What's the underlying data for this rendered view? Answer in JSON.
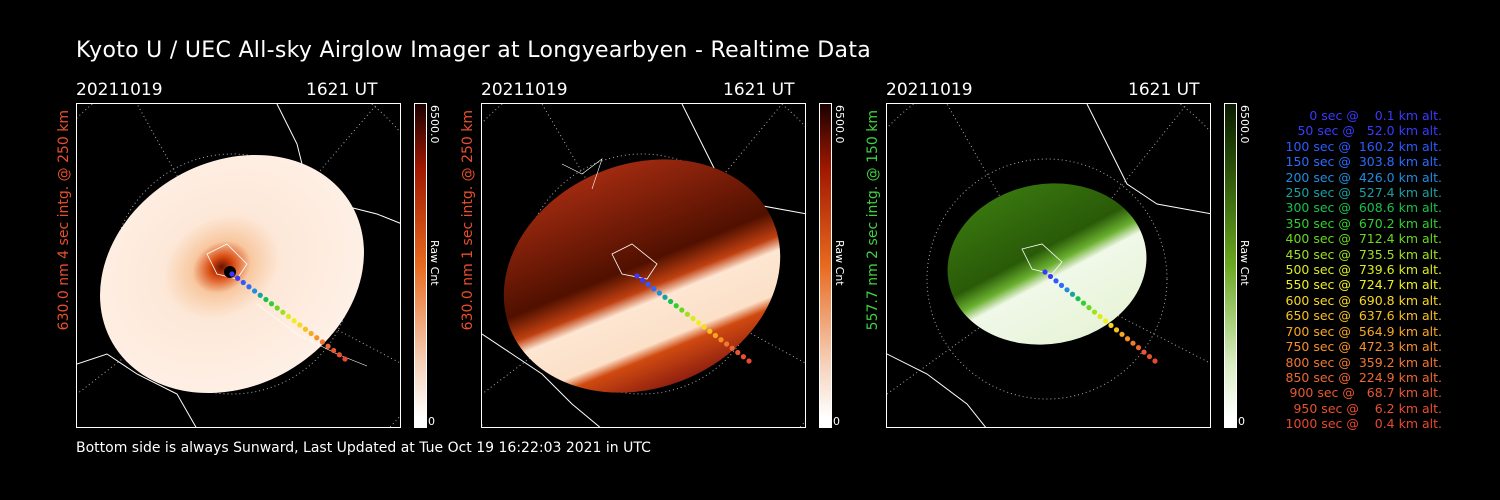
{
  "title": "Kyoto U / UEC All-sky Airglow Imager at Longyearbyen - Realtime Data",
  "footer": "Bottom side is always Sunward, Last Updated at Tue Oct 19 16:22:03 2021 in UTC",
  "panels": [
    {
      "date": "20211019",
      "time": "1621 UT",
      "side_label": "630.0 nm 4 sec intg. @ 250 km",
      "side_color": "#e8502a",
      "cbar_max": "6500.0",
      "cbar_unit": "Raw Cnt",
      "cbar_min": "0",
      "colormap": "red-saturated"
    },
    {
      "date": "20211019",
      "time": "1621 UT",
      "side_label": "630.0 nm 1 sec intg. @ 250 km",
      "side_color": "#e8502a",
      "cbar_max": "6500.0",
      "cbar_unit": "Raw Cnt",
      "cbar_min": "0",
      "colormap": "red"
    },
    {
      "date": "20211019",
      "time": "1621 UT",
      "side_label": "557.7 nm 2 sec intg. @ 150 km",
      "side_color": "#3fd23f",
      "cbar_max": "6500.0",
      "cbar_unit": "Raw Cnt",
      "cbar_min": "0",
      "colormap": "green"
    }
  ],
  "legend": [
    {
      "text": "   0 sec @    0.1 km alt.",
      "color": "#3a3aff"
    },
    {
      "text": "  50 sec @   52.0 km alt.",
      "color": "#3a3aff"
    },
    {
      "text": " 100 sec @  160.2 km alt.",
      "color": "#2a5cff"
    },
    {
      "text": " 150 sec @  303.8 km alt.",
      "color": "#2a6cff"
    },
    {
      "text": " 200 sec @  426.0 km alt.",
      "color": "#1f8de0"
    },
    {
      "text": " 250 sec @  527.4 km alt.",
      "color": "#1aa0a0"
    },
    {
      "text": " 300 sec @  608.6 km alt.",
      "color": "#18c050"
    },
    {
      "text": " 350 sec @  670.2 km alt.",
      "color": "#2fd02f"
    },
    {
      "text": " 400 sec @  712.4 km alt.",
      "color": "#6ad820"
    },
    {
      "text": " 450 sec @  735.5 km alt.",
      "color": "#a0e020"
    },
    {
      "text": " 500 sec @  739.6 km alt.",
      "color": "#d8ec20"
    },
    {
      "text": " 550 sec @  724.7 km alt.",
      "color": "#f0f020"
    },
    {
      "text": " 600 sec @  690.8 km alt.",
      "color": "#f8d820"
    },
    {
      "text": " 650 sec @  637.6 km alt.",
      "color": "#f8c020"
    },
    {
      "text": " 700 sec @  564.9 km alt.",
      "color": "#f8a820"
    },
    {
      "text": " 750 sec @  472.3 km alt.",
      "color": "#f89028"
    },
    {
      "text": " 800 sec @  359.2 km alt.",
      "color": "#f07830"
    },
    {
      "text": " 850 sec @  224.9 km alt.",
      "color": "#f06830"
    },
    {
      "text": " 900 sec @   68.7 km alt.",
      "color": "#e85830"
    },
    {
      "text": " 950 sec @    6.2 km alt.",
      "color": "#e85030"
    },
    {
      "text": "1000 sec @    0.4 km alt.",
      "color": "#e84830"
    }
  ]
}
